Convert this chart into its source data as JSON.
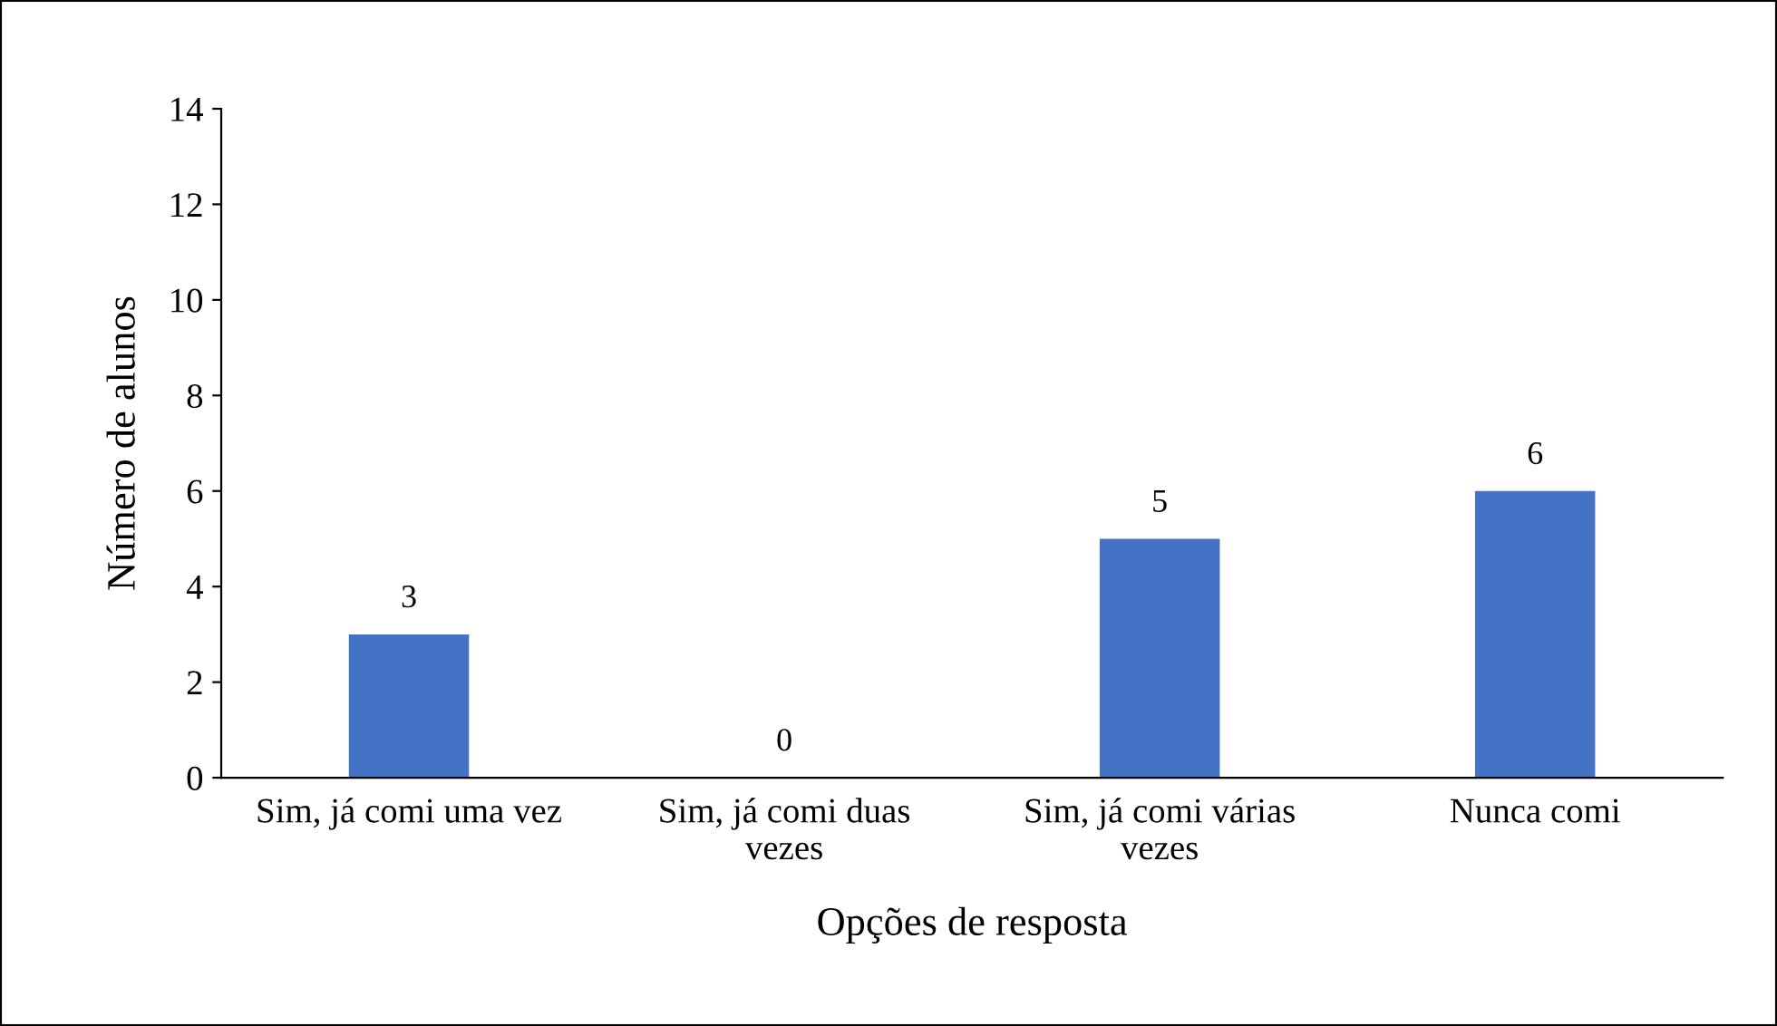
{
  "chart_data": {
    "type": "bar",
    "xlabel": "Opções de resposta",
    "ylabel": "Número de alunos",
    "categories": [
      "Sim, já comi uma vez",
      "Sim, já comi duas\nvezes",
      "Sim, já comi várias\nvezes",
      "Nunca comi"
    ],
    "values": [
      3,
      0,
      5,
      6
    ],
    "color": "#4472c4",
    "ylim": [
      0,
      14
    ],
    "yticks": [
      0,
      2,
      4,
      6,
      8,
      10,
      12,
      14
    ],
    "data_labels": true,
    "grid": false,
    "legend": false
  }
}
